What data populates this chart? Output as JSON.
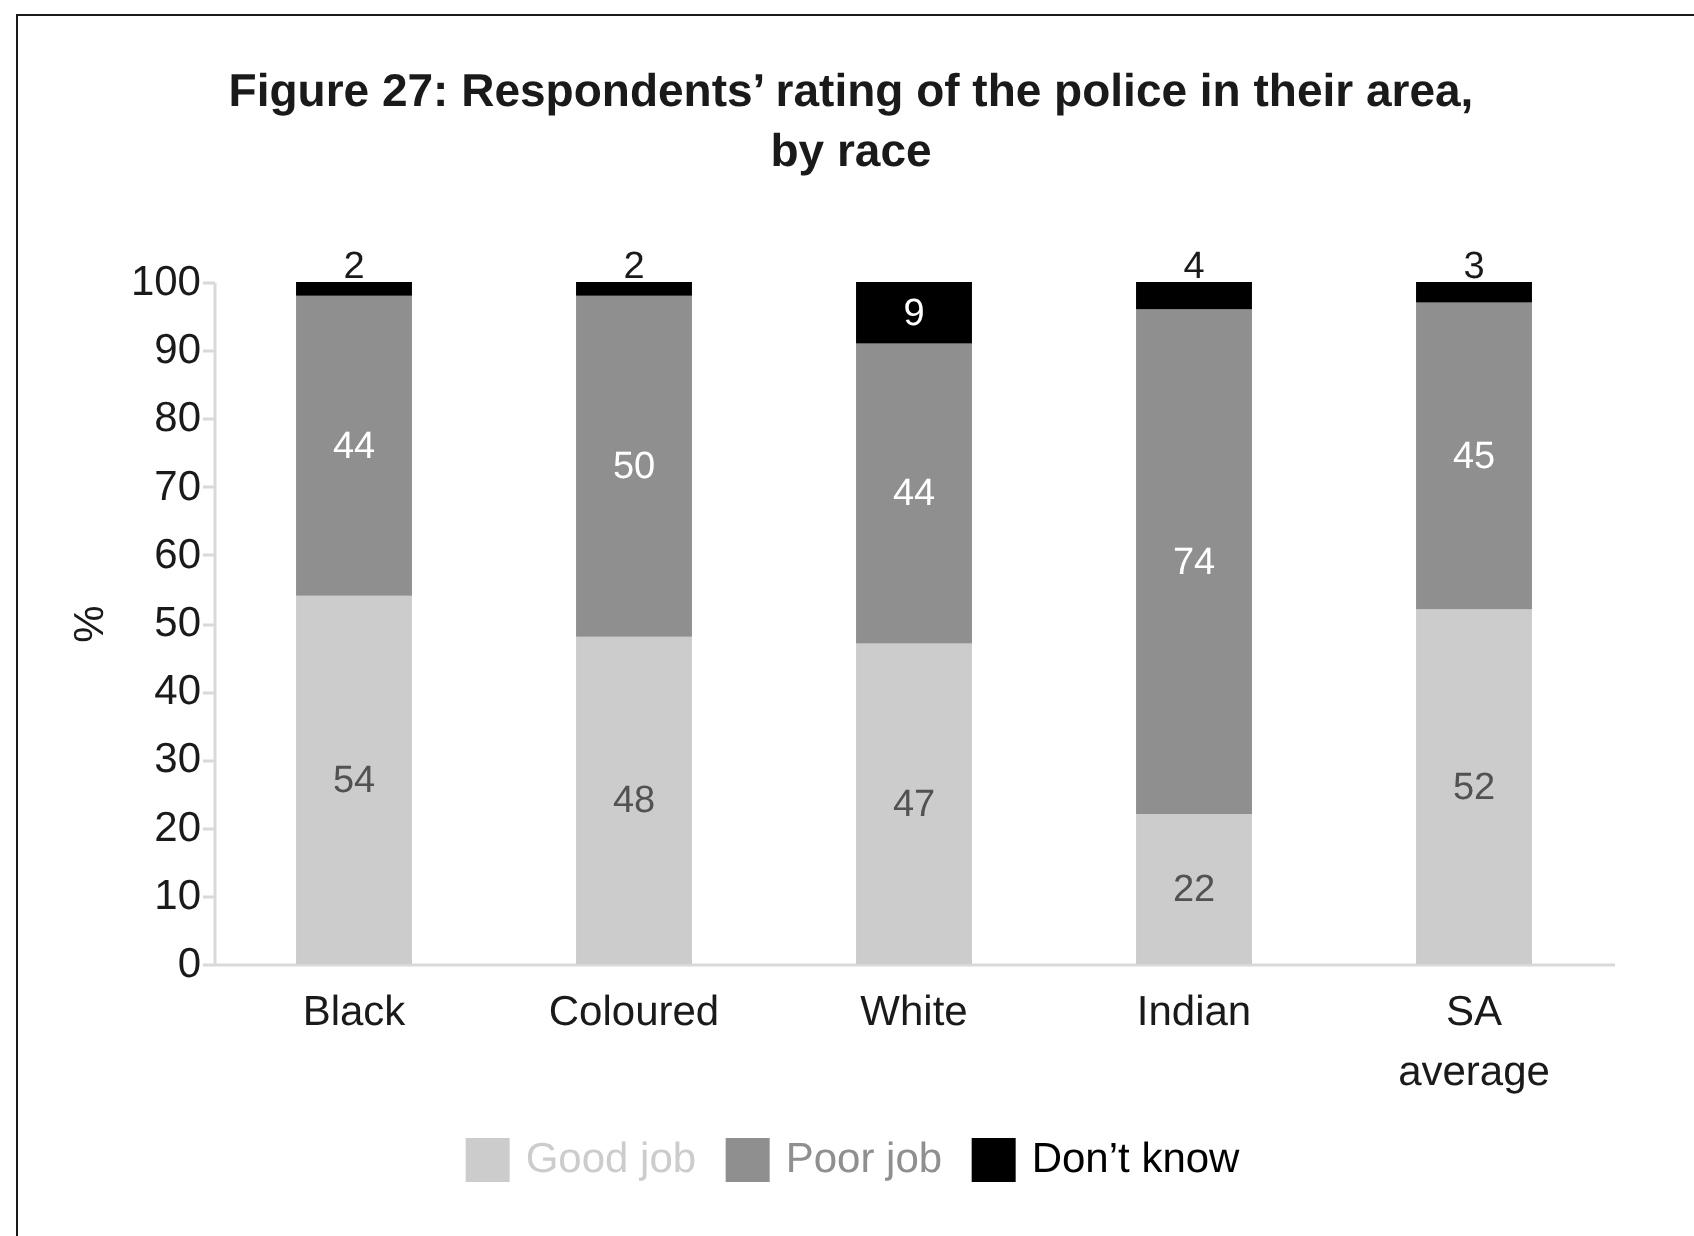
{
  "chart_data": {
    "type": "bar",
    "title": "Figure 27: Respondents’ rating of the police in their area, by race",
    "ylabel": "%",
    "categories": [
      "Black",
      "Coloured",
      "White",
      "Indian",
      "SA average"
    ],
    "series": [
      {
        "name": "Good job",
        "color": "#cccccc",
        "values": [
          54,
          48,
          47,
          22,
          52
        ]
      },
      {
        "name": "Poor job",
        "color": "#8f8f8f",
        "values": [
          44,
          50,
          44,
          74,
          45
        ]
      },
      {
        "name": "Don’t know",
        "color": "#000000",
        "values": [
          2,
          2,
          9,
          4,
          3
        ]
      }
    ],
    "stacked": true,
    "ylim": [
      0,
      100
    ],
    "yticks": [
      0,
      10,
      20,
      30,
      40,
      50,
      60,
      70,
      80,
      90,
      100
    ],
    "data_labels": true,
    "legend": "bottom",
    "grid": false
  }
}
